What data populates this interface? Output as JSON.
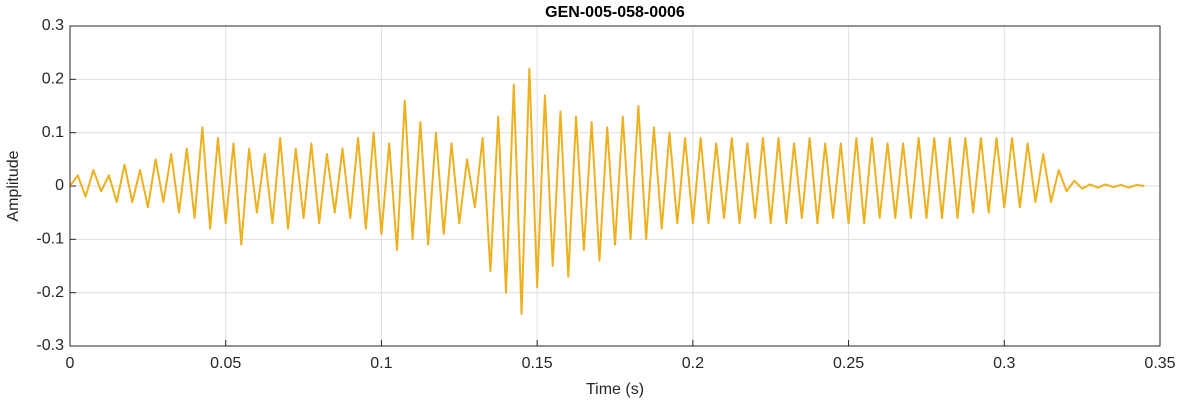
{
  "chart_data": {
    "type": "line",
    "title": "GEN-005-058-0006",
    "xlabel": "Time (s)",
    "ylabel": "Amplitude",
    "x": [
      0,
      0.0025,
      0.005,
      0.0075,
      0.01,
      0.0125,
      0.015,
      0.0175,
      0.02,
      0.0225,
      0.025,
      0.0275,
      0.03,
      0.0325,
      0.035,
      0.0375,
      0.04,
      0.0425,
      0.045,
      0.0475,
      0.05,
      0.0525,
      0.055,
      0.0575,
      0.06,
      0.0625,
      0.065,
      0.0675,
      0.07,
      0.0725,
      0.075,
      0.0775,
      0.08,
      0.0825,
      0.085,
      0.0875,
      0.09,
      0.0925,
      0.095,
      0.0975,
      0.1,
      0.1025,
      0.105,
      0.1075,
      0.11,
      0.1125,
      0.115,
      0.1175,
      0.12,
      0.1225,
      0.125,
      0.1275,
      0.13,
      0.1325,
      0.135,
      0.1375,
      0.14,
      0.1425,
      0.145,
      0.1475,
      0.15,
      0.1525,
      0.155,
      0.1575,
      0.16,
      0.1625,
      0.165,
      0.1675,
      0.17,
      0.1725,
      0.175,
      0.1775,
      0.18,
      0.1825,
      0.185,
      0.1875,
      0.19,
      0.1925,
      0.195,
      0.1975,
      0.2,
      0.2025,
      0.205,
      0.2075,
      0.21,
      0.2125,
      0.215,
      0.2175,
      0.22,
      0.2225,
      0.225,
      0.2275,
      0.23,
      0.2325,
      0.235,
      0.2375,
      0.24,
      0.2425,
      0.245,
      0.2475,
      0.25,
      0.2525,
      0.255,
      0.2575,
      0.26,
      0.2625,
      0.265,
      0.2675,
      0.27,
      0.2725,
      0.275,
      0.2775,
      0.28,
      0.2825,
      0.285,
      0.2875,
      0.29,
      0.2925,
      0.295,
      0.2975,
      0.3,
      0.3025,
      0.305,
      0.3075,
      0.31,
      0.3125,
      0.315,
      0.3175,
      0.32,
      0.3225,
      0.325,
      0.3275,
      0.33,
      0.3325,
      0.335,
      0.3375,
      0.34,
      0.3425,
      0.345
    ],
    "series": [
      {
        "color": "#EDB120",
        "values": [
          0,
          0.02,
          -0.02,
          0.03,
          -0.01,
          0.02,
          -0.03,
          0.04,
          -0.03,
          0.03,
          -0.04,
          0.05,
          -0.03,
          0.06,
          -0.05,
          0.07,
          -0.06,
          0.11,
          -0.08,
          0.09,
          -0.07,
          0.08,
          -0.11,
          0.07,
          -0.05,
          0.06,
          -0.07,
          0.09,
          -0.08,
          0.07,
          -0.06,
          0.08,
          -0.07,
          0.06,
          -0.05,
          0.07,
          -0.06,
          0.09,
          -0.08,
          0.1,
          -0.09,
          0.08,
          -0.12,
          0.16,
          -0.1,
          0.12,
          -0.11,
          0.1,
          -0.09,
          0.08,
          -0.07,
          0.05,
          -0.04,
          0.09,
          -0.16,
          0.13,
          -0.2,
          0.19,
          -0.24,
          0.22,
          -0.19,
          0.17,
          -0.15,
          0.14,
          -0.17,
          0.13,
          -0.12,
          0.12,
          -0.14,
          0.11,
          -0.11,
          0.13,
          -0.1,
          0.15,
          -0.1,
          0.11,
          -0.08,
          0.1,
          -0.07,
          0.09,
          -0.07,
          0.09,
          -0.07,
          0.08,
          -0.06,
          0.09,
          -0.07,
          0.08,
          -0.06,
          0.09,
          -0.07,
          0.09,
          -0.07,
          0.08,
          -0.06,
          0.09,
          -0.07,
          0.08,
          -0.06,
          0.08,
          -0.07,
          0.09,
          -0.07,
          0.09,
          -0.06,
          0.08,
          -0.06,
          0.08,
          -0.06,
          0.09,
          -0.06,
          0.09,
          -0.06,
          0.09,
          -0.06,
          0.09,
          -0.05,
          0.09,
          -0.05,
          0.09,
          -0.04,
          0.09,
          -0.04,
          0.08,
          -0.03,
          0.06,
          -0.03,
          0.03,
          -0.01,
          0.01,
          -0.005,
          0.003,
          -0.003,
          0.003,
          -0.002,
          0.002,
          -0.003,
          0.002,
          0
        ]
      }
    ],
    "xlim": [
      0,
      0.35
    ],
    "xticks": [
      0,
      0.05,
      0.1,
      0.15,
      0.2,
      0.25,
      0.3,
      0.35
    ],
    "ylim": [
      -0.3,
      0.3
    ],
    "yticks": [
      -0.3,
      -0.2,
      -0.1,
      0,
      0.1,
      0.2,
      0.3
    ],
    "grid": true
  }
}
